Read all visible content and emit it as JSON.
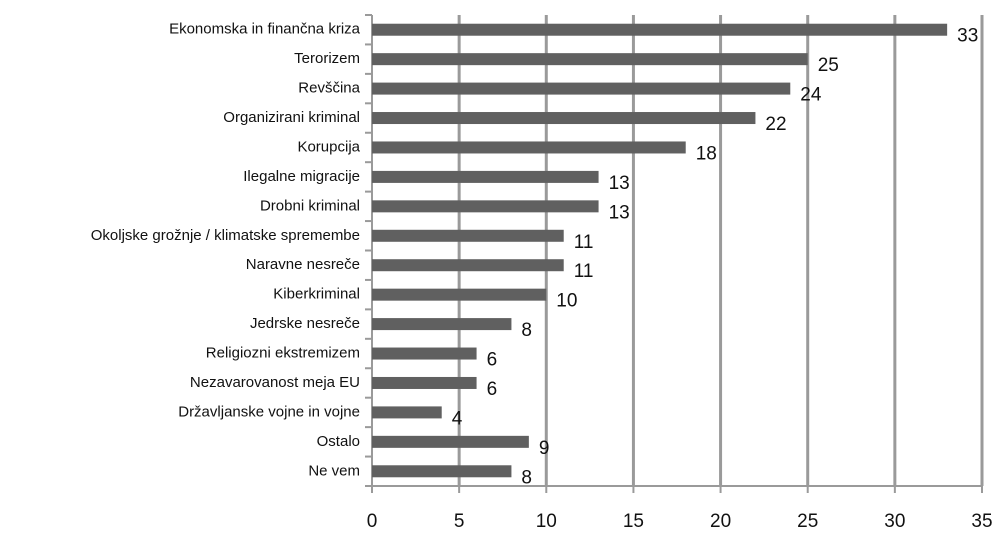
{
  "chart_data": {
    "type": "bar",
    "orientation": "horizontal",
    "categories": [
      "Ekonomska in finančna kriza",
      "Terorizem",
      "Revščina",
      "Organizirani kriminal",
      "Korupcija",
      "Ilegalne migracije",
      "Drobni kriminal",
      "Okoljske grožnje / klimatske spremembe",
      "Naravne nesreče",
      "Kiberkriminal",
      "Jedrske nesreče",
      "Religiozni ekstremizem",
      "Nezavarovanost meja EU",
      "Državljanske vojne in vojne",
      "Ostalo",
      "Ne vem"
    ],
    "values": [
      33,
      25,
      24,
      22,
      18,
      13,
      13,
      11,
      11,
      10,
      8,
      6,
      6,
      4,
      9,
      8
    ],
    "color": "#606060",
    "xlim": [
      0,
      35
    ],
    "xticks": [
      0,
      5,
      10,
      15,
      20,
      25,
      30,
      35
    ],
    "grid": true
  }
}
